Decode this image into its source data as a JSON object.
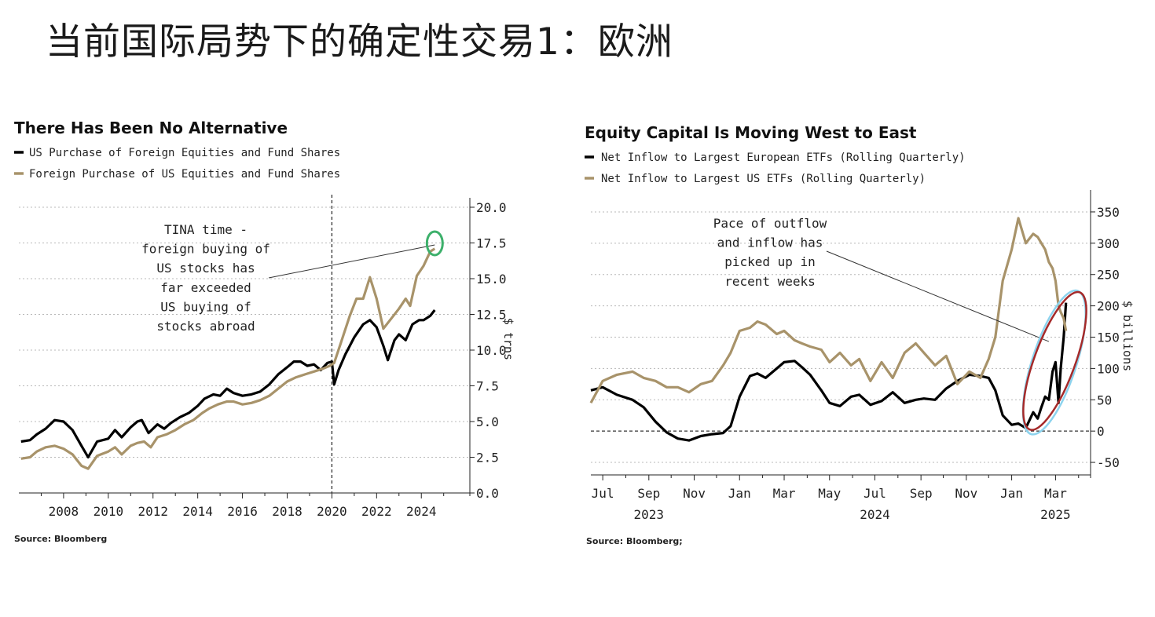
{
  "slide": {
    "title": "当前国际局势下的确定性交易1：欧洲"
  },
  "colors": {
    "black_series": "#000000",
    "gold_series": "#A8936A",
    "highlight_green": "#3DB06B",
    "highlight_red": "#A52A2A",
    "highlight_blue": "#8CD3EE"
  },
  "chart_data": [
    {
      "type": "line",
      "title": "There Has Been No Alternative",
      "source": "Source: Bloomberg",
      "ylabel": "$ trns",
      "xlim": [
        2006,
        2026.1
      ],
      "ylim": [
        0,
        20
      ],
      "y_ticks": [
        0,
        2.5,
        5,
        7.5,
        10,
        12.5,
        15,
        17.5,
        20
      ],
      "y_tick_labels": [
        "0.0",
        "2.5",
        "5.0",
        "7.5",
        "10.0",
        "12.5",
        "15.0",
        "17.5",
        "20.0"
      ],
      "x_ticks": [
        2008,
        2010,
        2012,
        2014,
        2016,
        2018,
        2020,
        2022,
        2024
      ],
      "x_tick_labels": [
        "2008",
        "2010",
        "2012",
        "2014",
        "2016",
        "2018",
        "2020",
        "2022",
        "2024"
      ],
      "vline_x": 2020,
      "grid": true,
      "legend_position": "top-left",
      "annotation": {
        "lines": [
          "TINA time -",
          "foreign buying of",
          "US stocks has",
          "far exceeded",
          "US buying of",
          "stocks abroad"
        ],
        "target_x": 2024.6,
        "target_y": 17.2
      },
      "series": [
        {
          "name": "US Purchase of Foreign Equities and Fund Shares",
          "color": "#000000",
          "x": [
            2006.1,
            2006.5,
            2006.8,
            2007.2,
            2007.6,
            2008.0,
            2008.4,
            2008.8,
            2009.1,
            2009.5,
            2010.0,
            2010.3,
            2010.6,
            2011.0,
            2011.3,
            2011.5,
            2011.8,
            2012.2,
            2012.5,
            2012.8,
            2013.2,
            2013.6,
            2014.0,
            2014.3,
            2014.7,
            2015.0,
            2015.3,
            2015.6,
            2016.0,
            2016.4,
            2016.8,
            2017.2,
            2017.6,
            2018.0,
            2018.3,
            2018.6,
            2018.9,
            2019.2,
            2019.5,
            2019.8,
            2020.0,
            2020.1,
            2020.3,
            2020.6,
            2021.0,
            2021.4,
            2021.7,
            2022.0,
            2022.3,
            2022.5,
            2022.8,
            2023.0,
            2023.3,
            2023.6,
            2023.9,
            2024.1,
            2024.4,
            2024.6
          ],
          "y": [
            3.6,
            3.7,
            4.1,
            4.5,
            5.1,
            5.0,
            4.4,
            3.3,
            2.5,
            3.6,
            3.8,
            4.4,
            3.9,
            4.6,
            5.0,
            5.1,
            4.2,
            4.8,
            4.5,
            4.9,
            5.3,
            5.6,
            6.1,
            6.6,
            6.9,
            6.8,
            7.3,
            7.0,
            6.8,
            6.9,
            7.1,
            7.6,
            8.3,
            8.8,
            9.2,
            9.2,
            8.9,
            9.0,
            8.6,
            9.1,
            9.2,
            7.6,
            8.6,
            9.7,
            10.9,
            11.8,
            12.1,
            11.6,
            10.3,
            9.3,
            10.7,
            11.1,
            10.7,
            11.8,
            12.1,
            12.1,
            12.4,
            12.8
          ]
        },
        {
          "name": "Foreign Purchase of US Equities and Fund Shares",
          "color": "#A8936A",
          "x": [
            2006.1,
            2006.5,
            2006.8,
            2007.2,
            2007.6,
            2008.0,
            2008.4,
            2008.8,
            2009.1,
            2009.5,
            2010.0,
            2010.3,
            2010.6,
            2011.0,
            2011.3,
            2011.6,
            2011.9,
            2012.2,
            2012.6,
            2013.0,
            2013.4,
            2013.8,
            2014.2,
            2014.5,
            2014.9,
            2015.3,
            2015.6,
            2016.0,
            2016.4,
            2016.8,
            2017.2,
            2017.6,
            2018.0,
            2018.4,
            2018.8,
            2019.2,
            2019.6,
            2019.9,
            2020.1,
            2020.4,
            2020.8,
            2021.1,
            2021.4,
            2021.7,
            2022.0,
            2022.3,
            2022.6,
            2023.0,
            2023.3,
            2023.5,
            2023.8,
            2024.1,
            2024.4,
            2024.6
          ],
          "y": [
            2.4,
            2.5,
            2.9,
            3.2,
            3.3,
            3.1,
            2.7,
            1.9,
            1.7,
            2.6,
            2.9,
            3.2,
            2.7,
            3.3,
            3.5,
            3.6,
            3.2,
            3.9,
            4.1,
            4.4,
            4.8,
            5.1,
            5.6,
            5.9,
            6.2,
            6.4,
            6.4,
            6.2,
            6.3,
            6.5,
            6.8,
            7.3,
            7.8,
            8.1,
            8.3,
            8.5,
            8.7,
            8.9,
            9.1,
            10.5,
            12.4,
            13.6,
            13.6,
            15.1,
            13.6,
            11.5,
            12.1,
            12.9,
            13.6,
            13.1,
            15.2,
            15.9,
            16.9,
            17.1
          ]
        }
      ]
    },
    {
      "type": "line",
      "title": "Equity Capital Is Moving West to East",
      "source": "Source: Bloomberg;",
      "ylabel": "$ billions",
      "xlim": [
        "2023-06-15",
        "2025-04-15"
      ],
      "ylim": [
        -70,
        370
      ],
      "y_ticks": [
        -50,
        0,
        50,
        100,
        150,
        200,
        250,
        300,
        350
      ],
      "y_tick_labels": [
        "-50",
        "0",
        "50",
        "100",
        "150",
        "200",
        "250",
        "300",
        "350"
      ],
      "x_ticks": [
        "2023-07",
        "2023-09",
        "2023-11",
        "2024-01",
        "2024-03",
        "2024-05",
        "2024-07",
        "2024-09",
        "2024-11",
        "2025-01",
        "2025-03"
      ],
      "x_tick_labels": [
        "Jul",
        "Sep",
        "Nov",
        "Jan",
        "Mar",
        "May",
        "Jul",
        "Sep",
        "Nov",
        "Jan",
        "Mar"
      ],
      "year_labels": [
        {
          "x": "2023-09",
          "label": "2023"
        },
        {
          "x": "2024-07",
          "label": "2024"
        },
        {
          "x": "2025-03",
          "label": "2025"
        }
      ],
      "zero_line": true,
      "grid": true,
      "legend_position": "top-left",
      "annotation": {
        "lines": [
          "Pace of outflow",
          "and inflow has",
          "picked up in",
          "recent weeks"
        ],
        "target_x": "2025-02-20",
        "target_y": 143
      },
      "series": [
        {
          "name": "Net Inflow to Largest European ETFs (Rolling Quarterly)",
          "color": "#000000",
          "x": [
            "2023-06-15",
            "2023-07-01",
            "2023-07-20",
            "2023-08-10",
            "2023-08-25",
            "2023-09-10",
            "2023-09-25",
            "2023-10-10",
            "2023-10-25",
            "2023-11-10",
            "2023-11-25",
            "2023-12-10",
            "2023-12-20",
            "2024-01-01",
            "2024-01-15",
            "2024-01-25",
            "2024-02-05",
            "2024-02-20",
            "2024-03-01",
            "2024-03-15",
            "2024-03-25",
            "2024-04-05",
            "2024-04-20",
            "2024-05-01",
            "2024-05-15",
            "2024-05-30",
            "2024-06-10",
            "2024-06-25",
            "2024-07-10",
            "2024-07-25",
            "2024-08-10",
            "2024-08-25",
            "2024-09-05",
            "2024-09-20",
            "2024-10-05",
            "2024-10-20",
            "2024-11-05",
            "2024-11-20",
            "2024-12-01",
            "2024-12-10",
            "2024-12-20",
            "2025-01-01",
            "2025-01-10",
            "2025-01-20",
            "2025-01-30",
            "2025-02-05",
            "2025-02-10",
            "2025-02-15",
            "2025-02-20",
            "2025-02-25",
            "2025-03-01",
            "2025-03-05",
            "2025-03-08",
            "2025-03-12",
            "2025-03-15"
          ],
          "y": [
            65,
            70,
            58,
            50,
            38,
            15,
            -2,
            -12,
            -15,
            -8,
            -5,
            -3,
            8,
            55,
            88,
            92,
            85,
            100,
            110,
            112,
            102,
            90,
            65,
            45,
            40,
            55,
            58,
            42,
            48,
            62,
            45,
            50,
            52,
            50,
            68,
            80,
            90,
            88,
            85,
            65,
            25,
            10,
            12,
            5,
            30,
            20,
            38,
            55,
            50,
            95,
            110,
            45,
            100,
            150,
            205
          ]
        },
        {
          "name": "Net Inflow to Largest US ETFs (Rolling Quarterly)",
          "color": "#A8936A",
          "x": [
            "2023-06-15",
            "2023-07-01",
            "2023-07-20",
            "2023-08-10",
            "2023-08-25",
            "2023-09-10",
            "2023-09-25",
            "2023-10-10",
            "2023-10-25",
            "2023-11-10",
            "2023-11-25",
            "2023-12-10",
            "2023-12-20",
            "2024-01-01",
            "2024-01-15",
            "2024-01-25",
            "2024-02-05",
            "2024-02-20",
            "2024-03-01",
            "2024-03-15",
            "2024-03-25",
            "2024-04-05",
            "2024-04-20",
            "2024-05-01",
            "2024-05-15",
            "2024-05-30",
            "2024-06-10",
            "2024-06-25",
            "2024-07-10",
            "2024-07-25",
            "2024-08-10",
            "2024-08-25",
            "2024-09-05",
            "2024-09-20",
            "2024-10-05",
            "2024-10-20",
            "2024-11-05",
            "2024-11-20",
            "2024-12-01",
            "2024-12-10",
            "2024-12-20",
            "2025-01-01",
            "2025-01-10",
            "2025-01-20",
            "2025-01-30",
            "2025-02-05",
            "2025-02-10",
            "2025-02-15",
            "2025-02-20",
            "2025-02-25",
            "2025-03-01",
            "2025-03-05",
            "2025-03-08",
            "2025-03-12",
            "2025-03-15"
          ],
          "y": [
            45,
            80,
            90,
            95,
            85,
            80,
            70,
            70,
            62,
            75,
            80,
            105,
            125,
            160,
            165,
            175,
            170,
            155,
            160,
            145,
            140,
            135,
            130,
            110,
            125,
            105,
            115,
            80,
            110,
            85,
            125,
            140,
            125,
            105,
            120,
            75,
            95,
            85,
            115,
            150,
            240,
            290,
            340,
            300,
            315,
            310,
            300,
            290,
            270,
            260,
            240,
            200,
            190,
            180,
            160
          ]
        }
      ]
    }
  ]
}
